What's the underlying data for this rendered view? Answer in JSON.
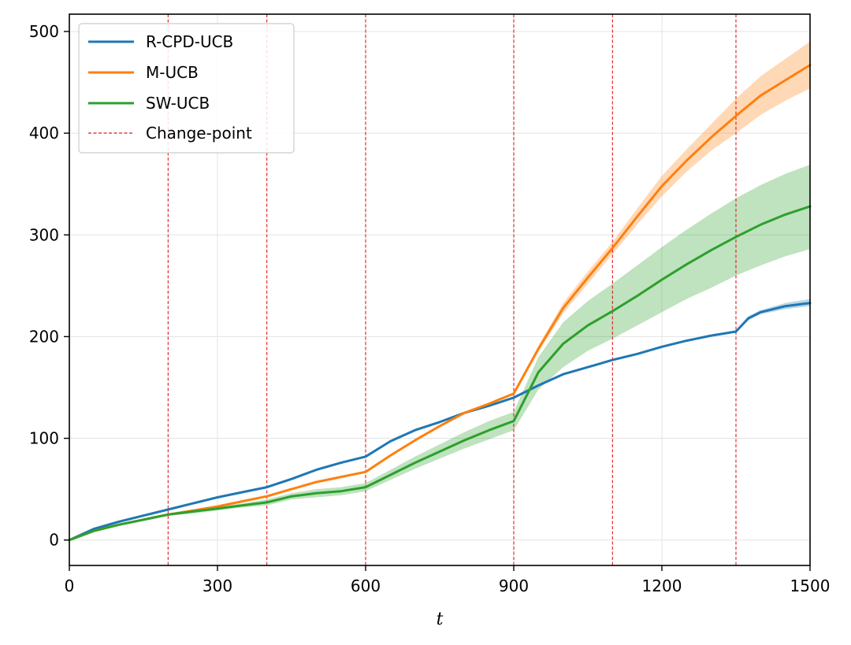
{
  "chart_data": {
    "type": "line",
    "xlabel": "t",
    "ylabel": "",
    "xlim": [
      0,
      1500
    ],
    "ylim": [
      -25,
      517
    ],
    "xticks": [
      0,
      300,
      600,
      900,
      1200,
      1500
    ],
    "yticks": [
      0,
      100,
      200,
      300,
      400,
      500
    ],
    "grid": true,
    "legend_position": "top-left",
    "change_points": {
      "name": "Change-point",
      "color": "#e41a1c",
      "x": [
        200,
        400,
        600,
        900,
        1100,
        1350
      ]
    },
    "series": [
      {
        "name": "R-CPD-UCB",
        "color": "#1f77b4",
        "x": [
          0,
          50,
          100,
          150,
          200,
          250,
          300,
          350,
          400,
          450,
          500,
          550,
          600,
          650,
          700,
          750,
          800,
          850,
          900,
          950,
          1000,
          1050,
          1100,
          1150,
          1200,
          1250,
          1300,
          1350,
          1375,
          1400,
          1450,
          1500
        ],
        "y": [
          0,
          11,
          18,
          24,
          30,
          36,
          42,
          47,
          52,
          60,
          69,
          76,
          82,
          97,
          108,
          116,
          125,
          132,
          140,
          152,
          163,
          170,
          177,
          183,
          190,
          196,
          201,
          205,
          218,
          224,
          230,
          233
        ],
        "lower": [
          0,
          10,
          17,
          23,
          29,
          35,
          41,
          46,
          51,
          59,
          68,
          75,
          81,
          96,
          107,
          115,
          124,
          131,
          139,
          151,
          162,
          169,
          176,
          182,
          189,
          195,
          200,
          204,
          216,
          222,
          227,
          230
        ],
        "upper": [
          0,
          12,
          19,
          25,
          31,
          37,
          43,
          48,
          53,
          61,
          70,
          77,
          83,
          98,
          109,
          117,
          126,
          133,
          141,
          153,
          164,
          171,
          178,
          184,
          191,
          197,
          202,
          206,
          220,
          226,
          233,
          237
        ]
      },
      {
        "name": "M-UCB",
        "color": "#ff7f0e",
        "x": [
          0,
          50,
          100,
          150,
          200,
          250,
          300,
          350,
          400,
          450,
          500,
          550,
          600,
          650,
          700,
          750,
          800,
          850,
          900,
          950,
          1000,
          1050,
          1100,
          1150,
          1200,
          1250,
          1300,
          1350,
          1400,
          1450,
          1500
        ],
        "y": [
          0,
          9,
          15,
          20,
          25,
          29,
          33,
          38,
          43,
          50,
          57,
          62,
          67,
          83,
          98,
          112,
          125,
          134,
          144,
          188,
          228,
          258,
          287,
          318,
          348,
          373,
          396,
          417,
          437,
          452,
          467
        ],
        "lower": [
          0,
          8,
          14,
          19,
          24,
          28,
          32,
          37,
          42,
          49,
          56,
          61,
          66,
          82,
          97,
          111,
          124,
          133,
          143,
          185,
          223,
          252,
          281,
          310,
          338,
          362,
          383,
          400,
          418,
          432,
          444
        ],
        "upper": [
          0,
          10,
          16,
          21,
          26,
          30,
          34,
          39,
          44,
          51,
          58,
          63,
          68,
          84,
          99,
          113,
          126,
          135,
          145,
          191,
          233,
          264,
          293,
          326,
          358,
          384,
          409,
          434,
          456,
          473,
          490
        ]
      },
      {
        "name": "SW-UCB",
        "color": "#2ca02c",
        "x": [
          0,
          50,
          100,
          150,
          200,
          250,
          300,
          350,
          400,
          450,
          500,
          550,
          600,
          650,
          700,
          750,
          800,
          850,
          900,
          950,
          1000,
          1050,
          1100,
          1150,
          1200,
          1250,
          1300,
          1350,
          1400,
          1450,
          1500
        ],
        "y": [
          0,
          9,
          15,
          20,
          25,
          28,
          31,
          34,
          37,
          43,
          46,
          48,
          52,
          64,
          76,
          87,
          98,
          108,
          117,
          165,
          193,
          211,
          225,
          240,
          256,
          271,
          285,
          298,
          310,
          320,
          328
        ],
        "lower": [
          0,
          8,
          14,
          19,
          24,
          26,
          29,
          32,
          34,
          40,
          42,
          44,
          48,
          59,
          70,
          80,
          90,
          99,
          108,
          148,
          170,
          186,
          198,
          211,
          224,
          237,
          248,
          260,
          270,
          279,
          286
        ],
        "upper": [
          0,
          10,
          16,
          21,
          26,
          30,
          33,
          36,
          40,
          46,
          50,
          52,
          56,
          69,
          82,
          94,
          106,
          117,
          126,
          180,
          214,
          235,
          252,
          270,
          288,
          305,
          321,
          336,
          349,
          360,
          369
        ]
      }
    ]
  }
}
